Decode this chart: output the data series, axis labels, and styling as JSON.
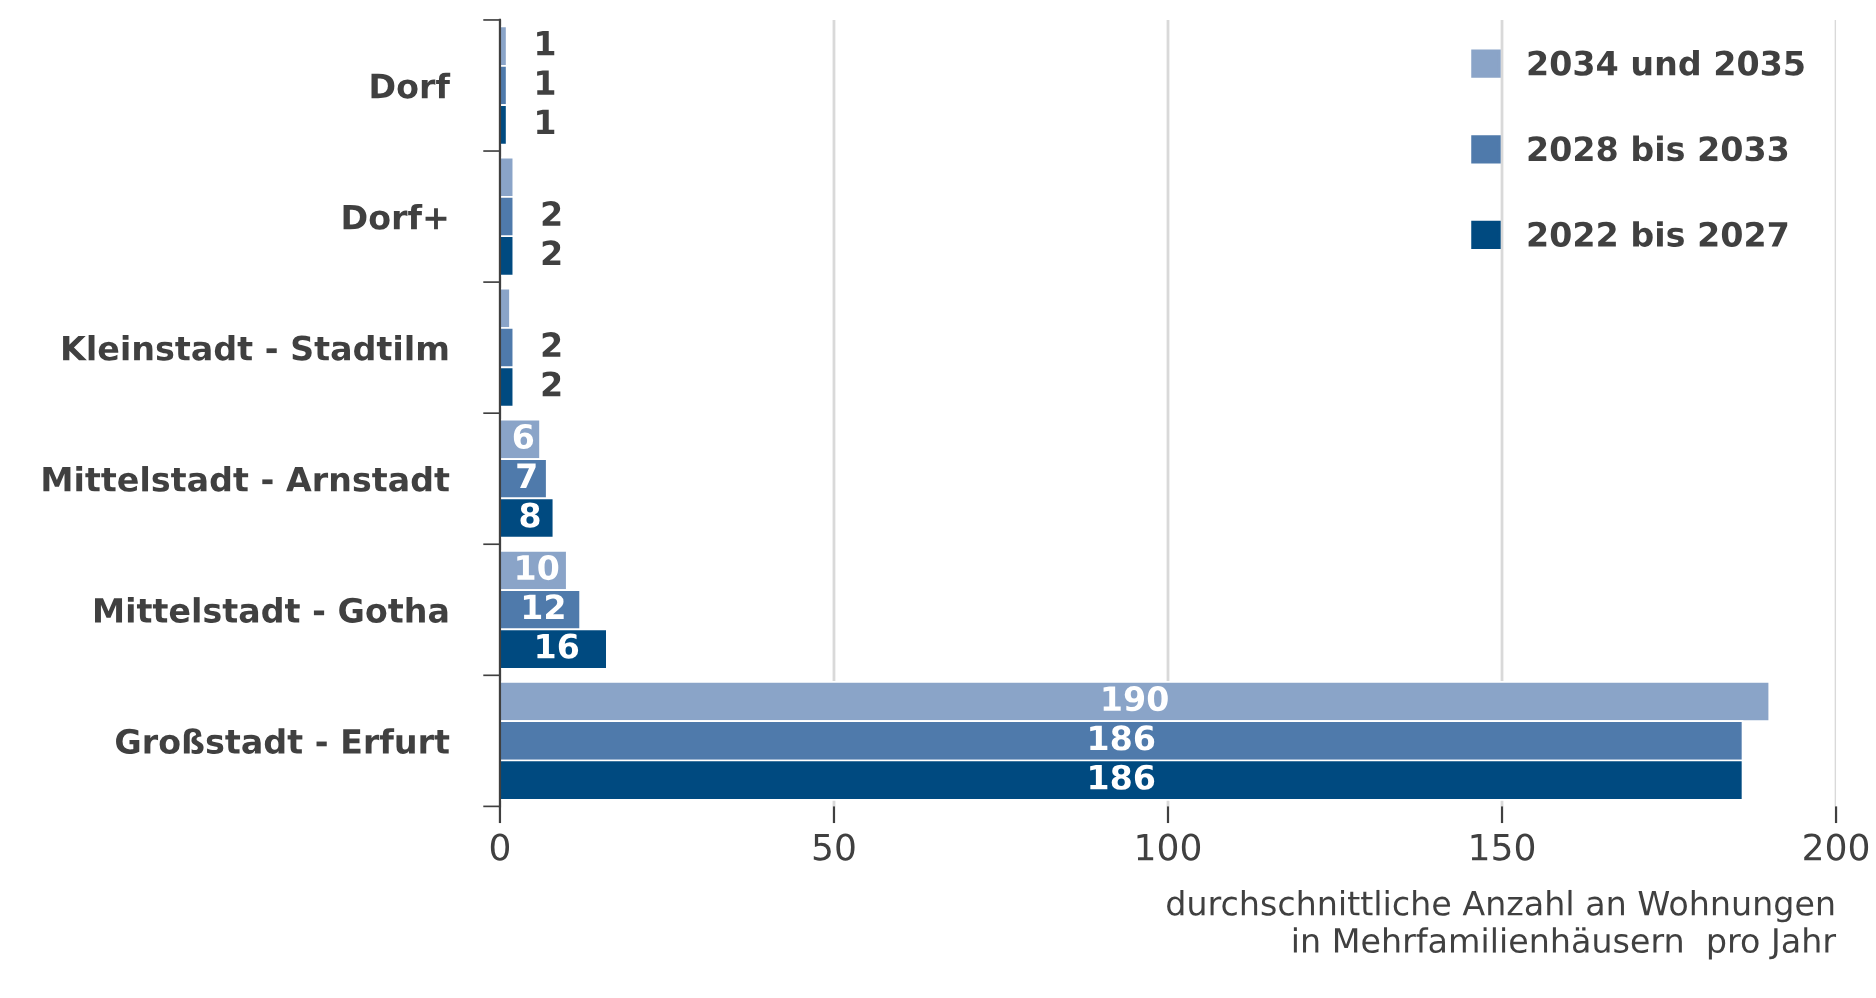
{
  "chart_data": {
    "type": "bar",
    "orientation": "horizontal",
    "xlabel": "durchschnittliche Anzahl an Wohnungen\nin Mehrfamilienhäusern  pro Jahr",
    "categories": [
      "Dorf",
      "Dorf+",
      "Kleinstadt - Stadtilm",
      "Mittelstadt - Arnstadt",
      "Mittelstadt - Gotha",
      "Großstadt - Erfurt"
    ],
    "series": [
      {
        "name": "2034 und 2035",
        "color": "#8aa4c8",
        "values": [
          1,
          2,
          1.5,
          6,
          10,
          190
        ],
        "value_labels": [
          "1",
          null,
          null,
          "6",
          "10",
          "190"
        ]
      },
      {
        "name": "2028 bis 2033",
        "color": "#4f7aab",
        "values": [
          1,
          2,
          2,
          7,
          12,
          186
        ],
        "value_labels": [
          "1",
          "2",
          "2",
          "7",
          "12",
          "186"
        ]
      },
      {
        "name": "2022 bis 2027",
        "color": "#004a80",
        "values": [
          1,
          2,
          2,
          8,
          16,
          186
        ],
        "value_labels": [
          "1",
          "2",
          "2",
          "8",
          "16",
          "186"
        ]
      }
    ],
    "xlim": [
      0,
      200
    ],
    "xticks": [
      0,
      50,
      100,
      150,
      200
    ],
    "grid": "x",
    "legend": "top right"
  }
}
